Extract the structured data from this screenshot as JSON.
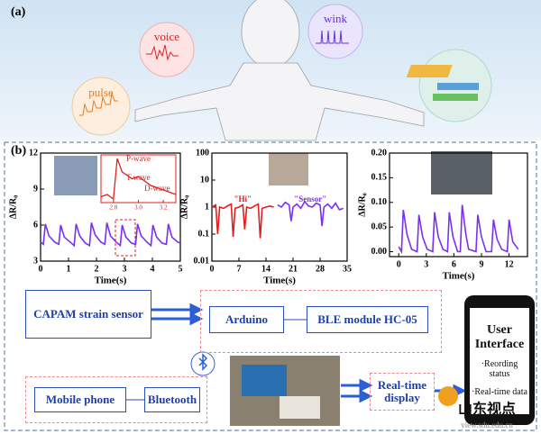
{
  "panel_a": {
    "label": "(a)",
    "callouts": [
      "voice",
      "wink",
      "pulse"
    ]
  },
  "panel_b": {
    "label": "(b)",
    "charts": [
      {
        "type": "line",
        "ylabel": "ΔR/R₀",
        "xlabel": "Time(s)",
        "xlim": [
          0,
          5
        ],
        "xticks": [
          0,
          1,
          2,
          3,
          4,
          5
        ],
        "ylim": [
          3,
          12
        ],
        "yticks": [
          3,
          6,
          9,
          12
        ],
        "series": [
          {
            "color": "#7b2ff2",
            "x": [
              0,
              0.1,
              0.17,
              0.3,
              0.5,
              0.65,
              0.72,
              0.85,
              1.05,
              1.2,
              1.27,
              1.4,
              1.6,
              1.75,
              1.82,
              1.95,
              2.15,
              2.3,
              2.37,
              2.5,
              2.7,
              2.85,
              2.92,
              3.05,
              3.25,
              3.4,
              3.47,
              3.6,
              3.8,
              3.95,
              4.02,
              4.15,
              4.35,
              4.5,
              4.57,
              4.7,
              4.9,
              5
            ],
            "values": [
              4.6,
              4.4,
              6.1,
              5.1,
              4.6,
              4.4,
              6.0,
              5.0,
              4.6,
              4.3,
              6.1,
              5.1,
              4.5,
              4.3,
              6.2,
              5.2,
              4.6,
              4.4,
              6.2,
              5.1,
              4.6,
              4.3,
              6.0,
              5.0,
              4.5,
              4.4,
              6.1,
              5.1,
              4.6,
              4.3,
              6.0,
              5.0,
              4.5,
              4.4,
              6.1,
              5.0,
              4.6,
              4.5
            ]
          }
        ],
        "inset": {
          "color": "#e0201e",
          "xlim": [
            2.7,
            3.3
          ],
          "xticks": [
            2.8,
            {
              "value": 3,
              "label": "3.0"
            },
            3.2
          ],
          "x": [
            2.7,
            2.75,
            2.8,
            2.83,
            2.87,
            2.95,
            3.0,
            3.1,
            3.2,
            3.3
          ],
          "values": [
            4.5,
            4.6,
            4.4,
            6.2,
            5.6,
            5.3,
            5.4,
            5.0,
            4.8,
            4.6
          ],
          "annotations": [
            "P-wave",
            "T-wave",
            "D-wave"
          ]
        }
      },
      {
        "type": "line",
        "ylabel": "ΔR/R₀",
        "xlabel": "Time(s)",
        "xlim": [
          0,
          35
        ],
        "xticks": [
          0,
          7,
          14,
          21,
          28,
          35
        ],
        "ylim": [
          0.01,
          100
        ],
        "yticks": [
          0.01,
          0.1,
          1,
          10,
          100
        ],
        "ylog": true,
        "series": [
          {
            "name": "\"Hi\"",
            "color": "#e0201e",
            "x": [
              0,
              1,
              1.5,
              2,
              3,
              4,
              5,
              5.5,
              6,
              7,
              8,
              8.5,
              9,
              10,
              11,
              12,
              12.5,
              13,
              14,
              15,
              16
            ],
            "values": [
              1,
              1.2,
              0.1,
              1,
              0.9,
              1.1,
              1.3,
              0.08,
              0.9,
              1,
              1.2,
              0.15,
              1,
              0.9,
              1.1,
              1.3,
              0.07,
              0.9,
              1,
              1.1,
              1
            ]
          },
          {
            "name": "\"Sensor\"",
            "color": "#7b2ff2",
            "x": [
              17,
              18,
              19,
              20,
              20.5,
              21,
              22,
              23,
              24,
              25,
              26,
              27,
              28,
              28.5,
              29,
              30,
              31,
              32,
              33,
              34
            ],
            "values": [
              1.2,
              1,
              1.5,
              1.2,
              0.3,
              1,
              1.3,
              0.9,
              1.6,
              1.1,
              1,
              1.4,
              1.2,
              0.2,
              1,
              1.3,
              0.9,
              1.4,
              0.8,
              0.9
            ]
          }
        ]
      },
      {
        "type": "line",
        "ylabel": "ΔR/R₀",
        "xlabel": "Time(s)",
        "xlim": [
          -1,
          14
        ],
        "xticks": [
          0,
          3,
          6,
          9,
          12
        ],
        "ylim": [
          -0.01,
          0.2
        ],
        "yticks": [
          {
            "value": 0,
            "label": "0.00"
          },
          {
            "value": 0.05,
            "label": "0.05"
          },
          {
            "value": 0.1,
            "label": "0.10"
          },
          {
            "value": 0.15,
            "label": "0.15"
          },
          {
            "value": 0.2,
            "label": "0.20"
          }
        ],
        "series": [
          {
            "color": "#7b2ff2",
            "x": [
              0,
              0.3,
              0.5,
              0.9,
              1.4,
              2.0,
              2.2,
              2.6,
              3.1,
              3.7,
              3.9,
              4.3,
              4.8,
              5.3,
              5.5,
              5.9,
              6.4,
              6.7,
              6.9,
              7.3,
              7.6,
              8.4,
              8.6,
              9.0,
              9.5,
              10.1,
              10.3,
              10.7,
              11.2,
              11.8,
              12,
              12.4,
              13
            ],
            "values": [
              0.01,
              0.0,
              0.085,
              0.035,
              0.005,
              0.0,
              0.075,
              0.03,
              0.005,
              0.0,
              0.08,
              0.03,
              0.005,
              0.0,
              0.08,
              0.03,
              0.0,
              0.0,
              0.095,
              0.035,
              0.005,
              0.0,
              0.075,
              0.03,
              0.0,
              0.0,
              0.065,
              0.025,
              0.005,
              0.0,
              0.065,
              0.02,
              0.005
            ]
          }
        ]
      }
    ],
    "diagram": {
      "sensor": "CAPAM strain sensor",
      "arduino": "Arduino",
      "ble": "BLE module HC-05",
      "mobile": "Mobile phone",
      "bluetooth": "Bluetooth",
      "display": "Real-time display",
      "phone_title": "User Interface",
      "phone_items": [
        "·Reording status",
        "·Real-time data"
      ]
    },
    "watermark": {
      "name": "山东视点",
      "url": "view.sdu.edu.cn"
    }
  }
}
